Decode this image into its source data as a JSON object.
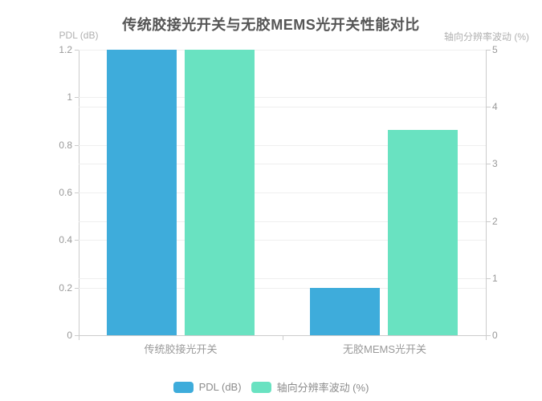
{
  "chart_data": {
    "type": "bar",
    "title": "传统胶接光开关与无胶MEMS光开关性能对比",
    "categories": [
      "传统胶接光开关",
      "无胶MEMS光开关"
    ],
    "series": [
      {
        "name": "PDL (dB)",
        "axis": "left",
        "color": "#3EACDB",
        "values": [
          1.2,
          0.2
        ]
      },
      {
        "name": "轴向分辨率波动 (%)",
        "axis": "right",
        "color": "#69E2C1",
        "values": [
          5,
          3.6
        ]
      }
    ],
    "left_axis": {
      "label": "PDL (dB)",
      "min": 0,
      "max": 1.2,
      "tick_labels": [
        "0",
        "0.2",
        "0.4",
        "0.6",
        "0.8",
        "1",
        "1.2"
      ]
    },
    "right_axis": {
      "label": "轴向分辨率波动 (%)",
      "min": 0,
      "max": 5,
      "tick_labels": [
        "0",
        "1",
        "2",
        "3",
        "4",
        "5"
      ]
    },
    "grid": true,
    "legend_position": "bottom",
    "background_color": "#FFFFFF"
  }
}
